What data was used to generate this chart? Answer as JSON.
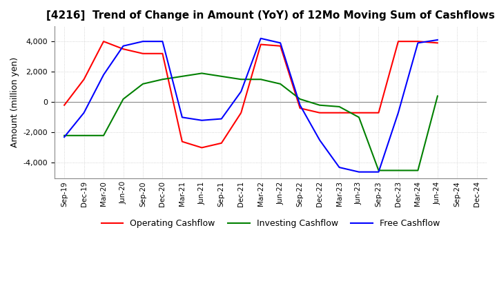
{
  "title": "[4216]  Trend of Change in Amount (YoY) of 12Mo Moving Sum of Cashflows",
  "ylabel": "Amount (million yen)",
  "ylim": [
    -5000,
    5000
  ],
  "yticks": [
    -4000,
    -2000,
    0,
    2000,
    4000
  ],
  "x_labels": [
    "Sep-19",
    "Dec-19",
    "Mar-20",
    "Jun-20",
    "Sep-20",
    "Dec-20",
    "Mar-21",
    "Jun-21",
    "Sep-21",
    "Dec-21",
    "Mar-22",
    "Jun-22",
    "Sep-22",
    "Dec-22",
    "Mar-23",
    "Jun-23",
    "Sep-23",
    "Dec-23",
    "Mar-24",
    "Jun-24",
    "Sep-24",
    "Dec-24"
  ],
  "operating": [
    -200,
    1500,
    4000,
    3500,
    3200,
    3200,
    -2600,
    -3000,
    -2700,
    -700,
    3800,
    3700,
    -400,
    -700,
    -700,
    -700,
    -700,
    4000,
    4000,
    3900,
    null,
    null
  ],
  "investing": [
    -2200,
    -2200,
    -2200,
    200,
    1200,
    1500,
    1700,
    1900,
    1700,
    1500,
    1500,
    1200,
    200,
    -200,
    -300,
    -1000,
    -4500,
    -4500,
    -4500,
    400,
    null,
    null
  ],
  "free": [
    -2300,
    -700,
    1800,
    3700,
    4000,
    4000,
    -1000,
    -1200,
    -1100,
    700,
    4200,
    3900,
    -200,
    -2500,
    -4300,
    -4600,
    -4600,
    -700,
    3900,
    4100,
    null,
    null
  ],
  "operating_color": "#ff0000",
  "investing_color": "#008000",
  "free_color": "#0000ff",
  "bg_color": "#ffffff",
  "grid_color": "#c8c8c8"
}
